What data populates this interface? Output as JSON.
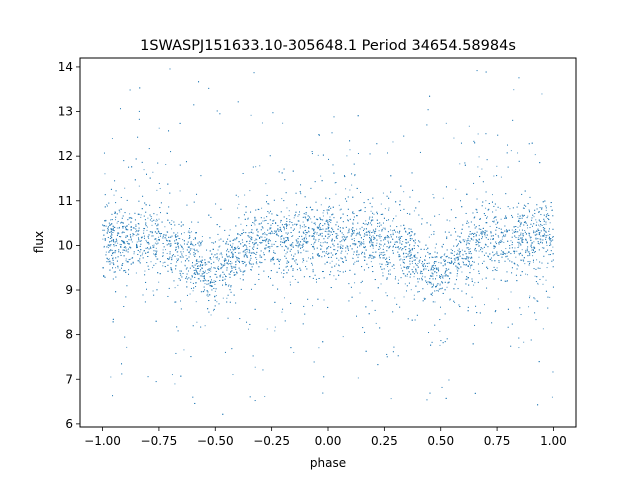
{
  "chart_data": {
    "type": "scatter",
    "title": "1SWASPJ151633.10-305648.1 Period 34654.58984s",
    "xlabel": "phase",
    "ylabel": "flux",
    "xlim": [
      -1.1,
      1.1
    ],
    "ylim": [
      5.93,
      14.2
    ],
    "x_ticks": [
      -1.0,
      -0.75,
      -0.5,
      -0.25,
      0.0,
      0.25,
      0.5,
      0.75,
      1.0
    ],
    "x_tick_labels": [
      "−1.00",
      "−0.75",
      "−0.50",
      "−0.25",
      "0.00",
      "0.25",
      "0.50",
      "0.75",
      "1.00"
    ],
    "y_ticks": [
      6,
      7,
      8,
      9,
      10,
      11,
      12,
      13,
      14
    ],
    "y_tick_labels": [
      "6",
      "7",
      "8",
      "9",
      "10",
      "11",
      "12",
      "13",
      "14"
    ],
    "grid": false,
    "marker_color": "#1f77b4",
    "series": [
      {
        "x_range": [
          -1.0,
          1.0
        ],
        "baseline_flux": 10.15,
        "eclipse_centers": [
          -0.52,
          0.48
        ],
        "eclipse_min_flux": 9.3,
        "flux_range": [
          6.2,
          14.0
        ]
      }
    ]
  }
}
